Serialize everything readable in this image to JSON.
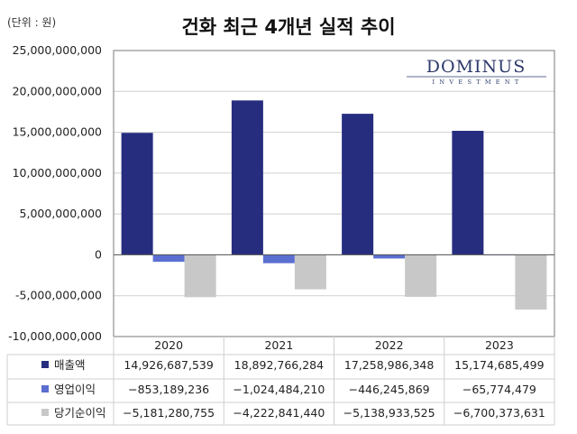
{
  "unit_label": "(단위 : 원)",
  "logo": {
    "name": "DOMINUS",
    "sub": "INVESTMENT"
  },
  "colors": {
    "revenue": "#262d7f",
    "operating": "#5b6fd0",
    "net": "#c8c8c8",
    "grid": "#cfcfcf",
    "axis": "#7a7a7a"
  },
  "chart_data": {
    "type": "bar",
    "title": "건화 최근 4개년 실적 추이",
    "categories": [
      "2020",
      "2021",
      "2022",
      "2023"
    ],
    "series": [
      {
        "name": "매출액",
        "values": [
          14926687539,
          18892766284,
          17258986348,
          15174685499
        ],
        "labels": [
          "14,926,687,539",
          "18,892,766,284",
          "17,258,986,348",
          "15,174,685,499"
        ]
      },
      {
        "name": "영업이익",
        "values": [
          -853189236,
          -1024484210,
          -446245869,
          -65774479
        ],
        "labels": [
          "−853,189,236",
          "−1,024,484,210",
          "−446,245,869",
          "−65,774,479"
        ]
      },
      {
        "name": "당기순이익",
        "values": [
          -5181280755,
          -4222841440,
          -5138933525,
          -6700373631
        ],
        "labels": [
          "−5,181,280,755",
          "−4,222,841,440",
          "−5,138,933,525",
          "−6,700,373,631"
        ]
      }
    ],
    "ylim": [
      -10000000000,
      25000000000
    ],
    "yticks": [
      25000000000,
      20000000000,
      15000000000,
      10000000000,
      5000000000,
      0,
      -5000000000,
      -10000000000
    ],
    "ytick_labels": [
      "25,000,000,000",
      "20,000,000,000",
      "15,000,000,000",
      "10,000,000,000",
      "5,000,000,000",
      "0",
      "-5,000,000,000",
      "-10,000,000,000"
    ],
    "grid": true,
    "legend": "data-table"
  }
}
